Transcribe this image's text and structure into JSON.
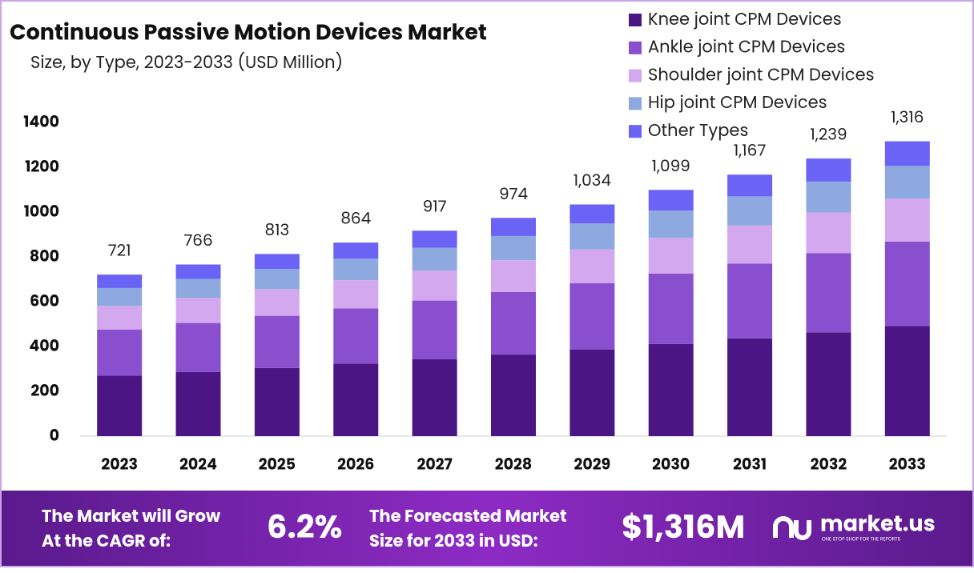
{
  "chart_data": {
    "type": "stacked_bar",
    "title": "Continuous Passive Motion Devices Market",
    "subtitle": "Size, by Type, 2023-2033 (USD Million)",
    "categories": [
      "2023",
      "2024",
      "2025",
      "2026",
      "2027",
      "2028",
      "2029",
      "2030",
      "2031",
      "2032",
      "2033"
    ],
    "series": [
      {
        "name": "Knee joint CPM Devices",
        "color": "#4b1683",
        "values": [
          270,
          286,
          304,
          323,
          343,
          364,
          387,
          411,
          436,
          463,
          492
        ]
      },
      {
        "name": "Ankle joint CPM Devices",
        "color": "#8a4fcf",
        "values": [
          206,
          219,
          233,
          247,
          262,
          279,
          296,
          314,
          334,
          354,
          376
        ]
      },
      {
        "name": "Shoulder joint CPM Devices",
        "color": "#d4a8ee",
        "values": [
          105,
          112,
          119,
          126,
          134,
          142,
          151,
          160,
          170,
          181,
          192
        ]
      },
      {
        "name": "Hip joint CPM Devices",
        "color": "#8ea8e0",
        "values": [
          80,
          85,
          90,
          96,
          102,
          108,
          115,
          122,
          130,
          138,
          146
        ]
      },
      {
        "name": "Other Types",
        "color": "#6b63f5",
        "values": [
          60,
          64,
          67,
          72,
          76,
          81,
          85,
          92,
          97,
          103,
          110
        ]
      }
    ],
    "totals": [
      721,
      766,
      813,
      864,
      917,
      974,
      1034,
      1099,
      1167,
      1239,
      1316
    ],
    "total_labels": [
      "721",
      "766",
      "813",
      "864",
      "917",
      "974",
      "1,034",
      "1,099",
      "1,167",
      "1,239",
      "1,316"
    ],
    "ylim": [
      0,
      1400
    ],
    "yticks": [
      0,
      200,
      400,
      600,
      800,
      1000,
      1200,
      1400
    ],
    "grid": false
  },
  "footer": {
    "cagr_text": [
      "The Market will Grow",
      "At the CAGR of:"
    ],
    "cagr_value": "6.2%",
    "size_text": [
      "The Forecasted Market",
      "Size for 2033 in USD:"
    ],
    "size_value": "$1,316M",
    "brand": "market.us",
    "tagline": "ONE STOP SHOP FOR THE REPORTS"
  }
}
